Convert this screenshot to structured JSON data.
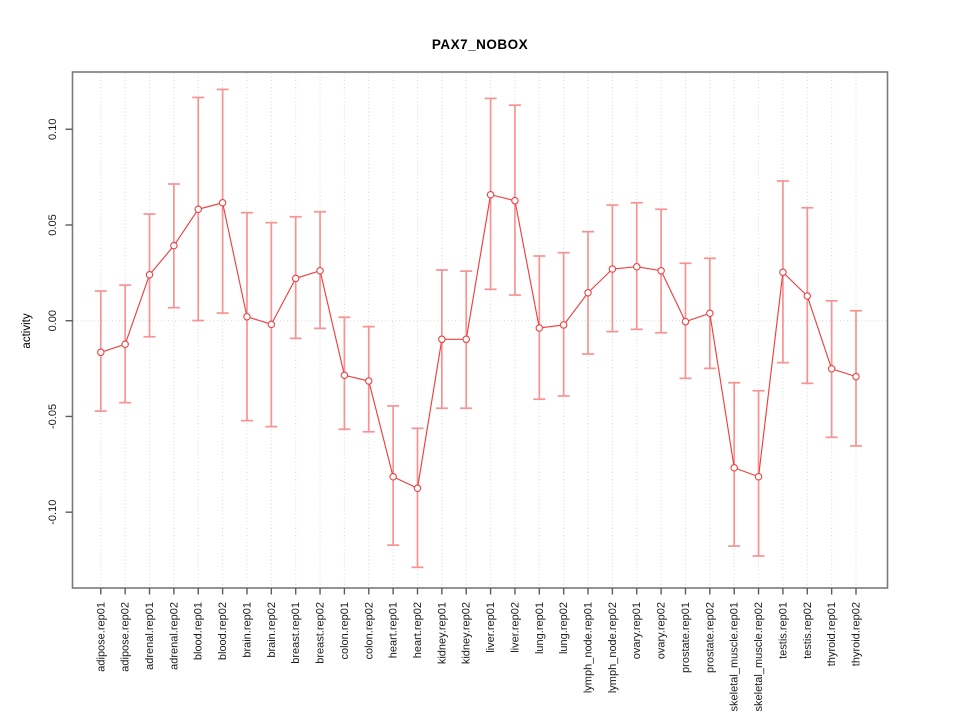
{
  "chart_data": {
    "type": "line",
    "title": "PAX7_NOBOX",
    "xlabel": "",
    "ylabel": "activity",
    "ylim": [
      -0.1396,
      0.1299
    ],
    "grid": "vertical-dotted-per-category, horizontal-dotted-at-zero",
    "legend": "none",
    "point_style": "open-circle",
    "error_bars": true,
    "yticks": {
      "values": [
        0.1,
        0.05,
        0.0,
        -0.05,
        -0.1
      ],
      "labels": [
        "0.10",
        "0.05",
        "0.00",
        "-0.05",
        "-0.10"
      ]
    },
    "categories": [
      "adipose.rep01",
      "adipose.rep02",
      "adrenal.rep01",
      "adrenal.rep02",
      "blood.rep01",
      "blood.rep02",
      "brain.rep01",
      "brain.rep02",
      "breast.rep01",
      "breast.rep02",
      "colon.rep01",
      "colon.rep02",
      "heart.rep01",
      "heart.rep02",
      "kidney.rep01",
      "kidney.rep02",
      "liver.rep01",
      "liver.rep02",
      "lung.rep01",
      "lung.rep02",
      "lymph_node.rep01",
      "lymph_node.rep02",
      "ovary.rep01",
      "ovary.rep02",
      "prostate.rep01",
      "prostate.rep02",
      "skeletal_muscle.rep01",
      "skeletal_muscle.rep02",
      "testis.rep01",
      "testis.rep02",
      "thyroid.rep01",
      "thyroid.rep02"
    ],
    "series": [
      {
        "name": "activity",
        "values": [
          -0.0165,
          -0.0123,
          0.024,
          0.0392,
          0.0582,
          0.0616,
          0.0021,
          -0.0019,
          0.0221,
          0.0261,
          -0.0285,
          -0.0315,
          -0.0815,
          -0.0875,
          -0.0097,
          -0.0097,
          0.0658,
          0.0627,
          -0.0038,
          -0.0022,
          0.0146,
          0.027,
          0.0282,
          0.0261,
          -0.0005,
          0.0039,
          -0.0768,
          -0.0815,
          0.0253,
          0.0129,
          -0.0251,
          -0.0292
        ],
        "upper": [
          0.0155,
          0.0186,
          0.0557,
          0.0714,
          0.1166,
          0.1208,
          0.0564,
          0.0512,
          0.0543,
          0.0569,
          0.0018,
          -0.0031,
          -0.0445,
          -0.0562,
          0.0265,
          0.0259,
          0.1161,
          0.1126,
          0.0338,
          0.0355,
          0.0465,
          0.0604,
          0.0616,
          0.0582,
          0.03,
          0.0326,
          -0.0324,
          -0.0366,
          0.073,
          0.059,
          0.0104,
          0.0052
        ],
        "lower": [
          -0.0472,
          -0.0428,
          -0.0084,
          0.0068,
          0.0001,
          0.004,
          -0.0522,
          -0.0553,
          -0.0092,
          -0.004,
          -0.0567,
          -0.058,
          -0.1172,
          -0.1288,
          -0.0457,
          -0.0457,
          0.0164,
          0.0134,
          -0.041,
          -0.0393,
          -0.0174,
          -0.0057,
          -0.0045,
          -0.0063,
          -0.0301,
          -0.0249,
          -0.1177,
          -0.1229,
          -0.0219,
          -0.0327,
          -0.0609,
          -0.0654
        ]
      }
    ],
    "colors": {
      "line": "#ee4040",
      "point_stroke": "#ee4040",
      "point_fill": "#ffffff",
      "error_bar": "#f99292",
      "grid": "#d9d9d9",
      "zero_line": "#d9d9d9",
      "box": "#7a7a7a",
      "tick": "#5c5c5c",
      "text": "#1a1a1a"
    }
  }
}
